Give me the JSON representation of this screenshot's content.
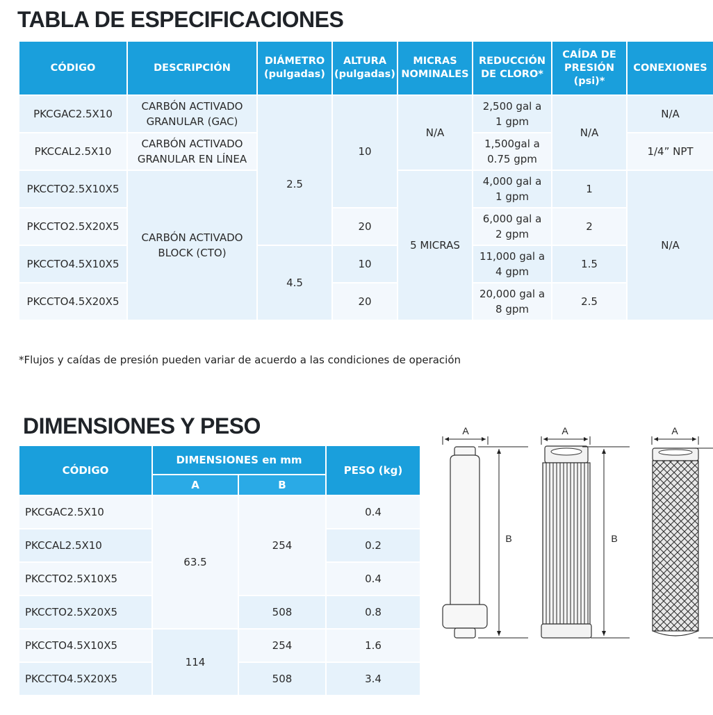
{
  "spec": {
    "title": "TABLA DE ESPECIFICACIONES",
    "headers": {
      "codigo": "CÓDIGO",
      "descripcion": "DESCRIPCIÓN",
      "diametro_1": "DIÁMETRO",
      "diametro_2": "(pulgadas)",
      "altura_1": "ALTURA",
      "altura_2": "(pulgadas)",
      "micras_1": "MICRAS",
      "micras_2": "NOMINALES",
      "reduccion_1": "REDUCCIÓN",
      "reduccion_2": "DE CLORO*",
      "caida_1": "CAÍDA DE",
      "caida_2": "PRESIÓN",
      "caida_3": "(psi)*",
      "conexiones": "CONEXIONES"
    },
    "codes": [
      "PKCGAC2.5X10",
      "PKCCAL2.5X10",
      "PKCCTO2.5X10X5",
      "PKCCTO2.5X20X5",
      "PKCCTO4.5X10X5",
      "PKCCTO4.5X20X5"
    ],
    "desc_gac_1": "CARBÓN ACTIVADO",
    "desc_gac_2": "GRANULAR (GAC)",
    "desc_cal_1": "CARBÓN ACTIVADO",
    "desc_cal_2": "GRANULAR EN LÍNEA",
    "desc_cto_1": "CARBÓN ACTIVADO",
    "desc_cto_2": "BLOCK (CTO)",
    "diam_a": "2.5",
    "diam_b": "4.5",
    "alt_10a": "10",
    "alt_20a": "20",
    "alt_10b": "10",
    "alt_20b": "20",
    "micras_na": "N/A",
    "micras_5": "5 MICRAS",
    "cloro": [
      [
        "2,500 gal a",
        "1 gpm"
      ],
      [
        "1,500gal a",
        "0.75 gpm"
      ],
      [
        "4,000 gal a",
        "1 gpm"
      ],
      [
        "6,000 gal a",
        "2 gpm"
      ],
      [
        "11,000 gal a",
        "4 gpm"
      ],
      [
        "20,000 gal a",
        "8 gpm"
      ]
    ],
    "caida_na": "N/A",
    "caida": [
      "1",
      "2",
      "1.5",
      "2.5"
    ],
    "con_na1": "N/A",
    "con_npt": "1/4” NPT",
    "con_na2": "N/A",
    "footnote": "*Flujos y caídas de presión pueden variar de acuerdo a las condiciones de operación"
  },
  "dim": {
    "title": "DIMENSIONES Y PESO",
    "headers": {
      "codigo": "CÓDIGO",
      "dimensiones": "DIMENSIONES en mm",
      "a": "A",
      "b": "B",
      "peso": "PESO (kg)"
    },
    "codes": [
      "PKCGAC2.5X10",
      "PKCCAL2.5X10",
      "PKCCTO2.5X10X5",
      "PKCCTO2.5X20X5",
      "PKCCTO4.5X10X5",
      "PKCCTO4.5X20X5"
    ],
    "a_1": "63.5",
    "a_2": "114",
    "b_1": "254",
    "b_2": "508",
    "b_3": "254",
    "b_4": "508",
    "pesos": [
      "0.4",
      "0.2",
      "0.4",
      "0.8",
      "1.6",
      "3.4"
    ]
  },
  "diagram": {
    "label_a": "A",
    "label_b": "B"
  }
}
